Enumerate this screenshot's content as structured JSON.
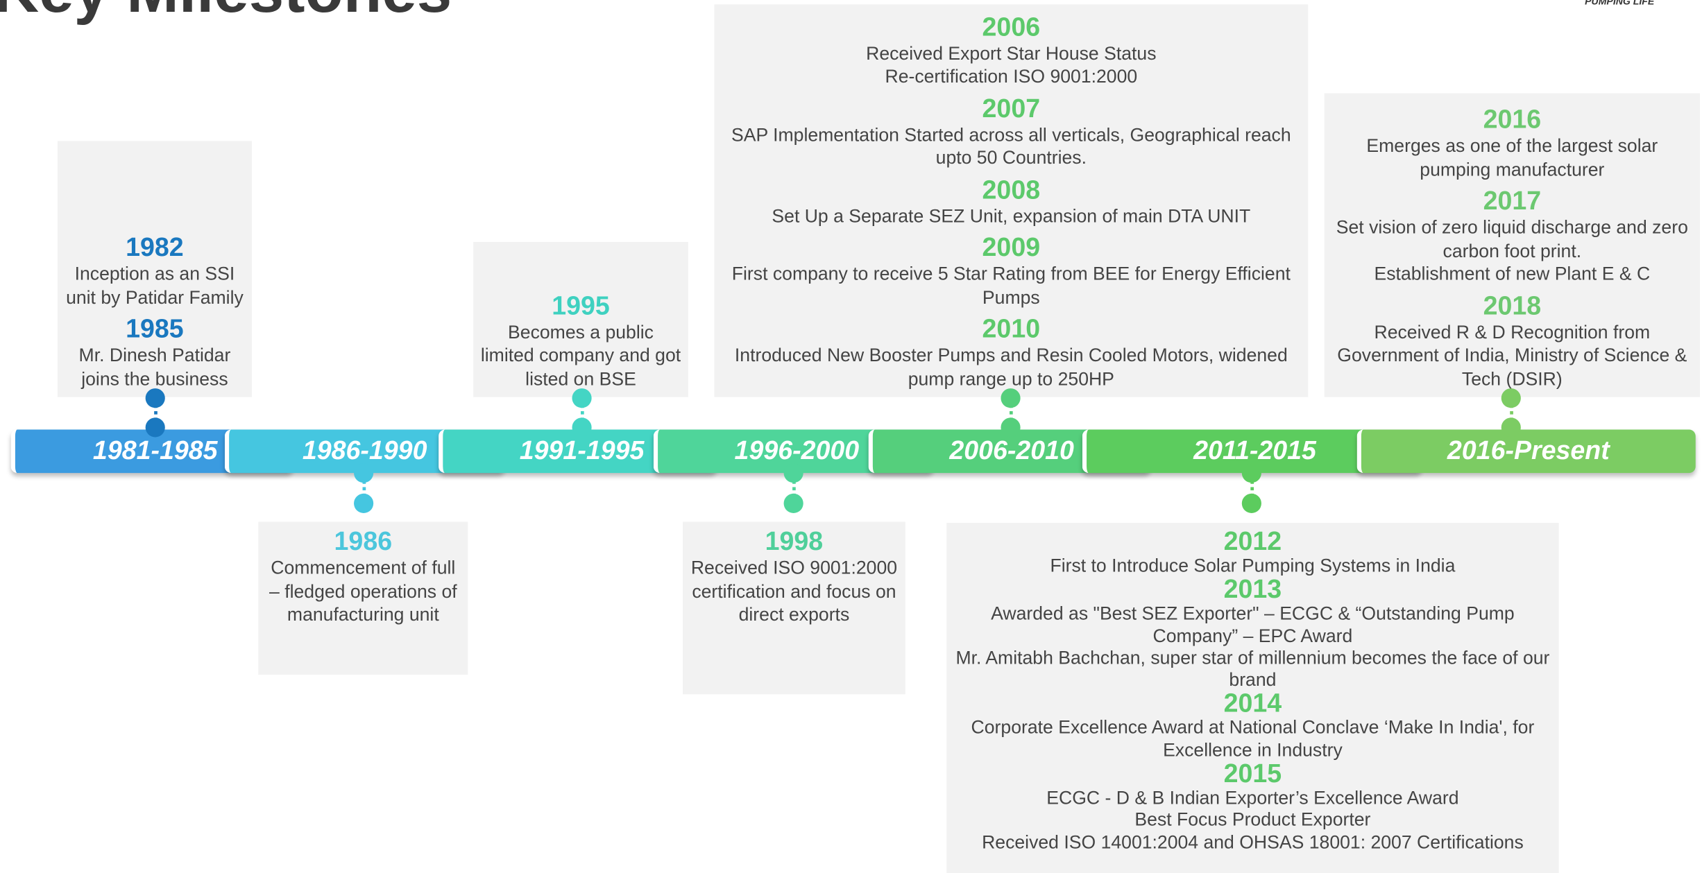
{
  "title": "Key Milestones",
  "logo_text": "PUMPING LIFE",
  "periods": [
    "1981-1985",
    "1986-1990",
    "1991-1995",
    "1996-2000",
    "2006-2010",
    "2011-2015",
    "2016-Present"
  ],
  "milestones": [
    {
      "entries": [
        {
          "year": "1982",
          "lines": [
            "Inception as an SSI unit by Patidar Family"
          ]
        },
        {
          "year": "1985",
          "lines": [
            "Mr. Dinesh Patidar joins the business"
          ]
        }
      ]
    },
    {
      "entries": [
        {
          "year": "1986",
          "lines": [
            "Commencement of full – fledged operations  of manufacturing unit"
          ]
        }
      ]
    },
    {
      "entries": [
        {
          "year": "1995",
          "lines": [
            "Becomes a public limited company and got listed on BSE"
          ]
        }
      ]
    },
    {
      "entries": [
        {
          "year": "1998",
          "lines": [
            "Received ISO 9001:2000 certification and focus on direct exports"
          ]
        }
      ]
    },
    {
      "entries": [
        {
          "year": "2006",
          "lines": [
            "Received Export  Star House Status",
            "Re-certification ISO 9001:2000"
          ]
        },
        {
          "year": "2007",
          "lines": [
            "SAP Implementation Started across all verticals,  Geographical reach upto 50 Countries."
          ]
        },
        {
          "year": "2008",
          "lines": [
            "Set Up a Separate SEZ Unit, expansion of main DTA UNIT"
          ]
        },
        {
          "year": "2009",
          "lines": [
            "First company to receive 5 Star Rating from BEE for Energy Efficient Pumps"
          ]
        },
        {
          "year": "2010",
          "lines": [
            "Introduced New Booster Pumps and Resin Cooled Motors, widened pump range up to 250HP"
          ]
        }
      ]
    },
    {
      "entries": [
        {
          "year": "2012",
          "lines": [
            "First to Introduce Solar Pumping Systems in India"
          ]
        },
        {
          "year": "2013",
          "lines": [
            "Awarded as \"Best SEZ Exporter\" – ECGC & “Outstanding Pump Company” – EPC Award",
            "Mr. Amitabh Bachchan, super star of millennium becomes the face of our brand"
          ]
        },
        {
          "year": "2014",
          "lines": [
            "Corporate Excellence Award at National Conclave ‘Make In India', for Excellence in Industry"
          ]
        },
        {
          "year": "2015",
          "lines": [
            "ECGC - D & B Indian Exporter’s Excellence Award",
            "Best Focus Product Exporter",
            "Received ISO 14001:2004 and OHSAS 18001: 2007 Certifications"
          ]
        }
      ]
    },
    {
      "entries": [
        {
          "year": "2016",
          "lines": [
            "Emerges as one of the largest solar pumping manufacturer"
          ]
        },
        {
          "year": "2017",
          "lines": [
            "Set vision of zero liquid discharge and zero carbon foot print.",
            "Establishment of new Plant E & C"
          ]
        },
        {
          "year": "2018",
          "lines": [
            "Received R & D Recognition from Government of India, Ministry of Science & Tech (DSIR)"
          ]
        }
      ]
    }
  ]
}
